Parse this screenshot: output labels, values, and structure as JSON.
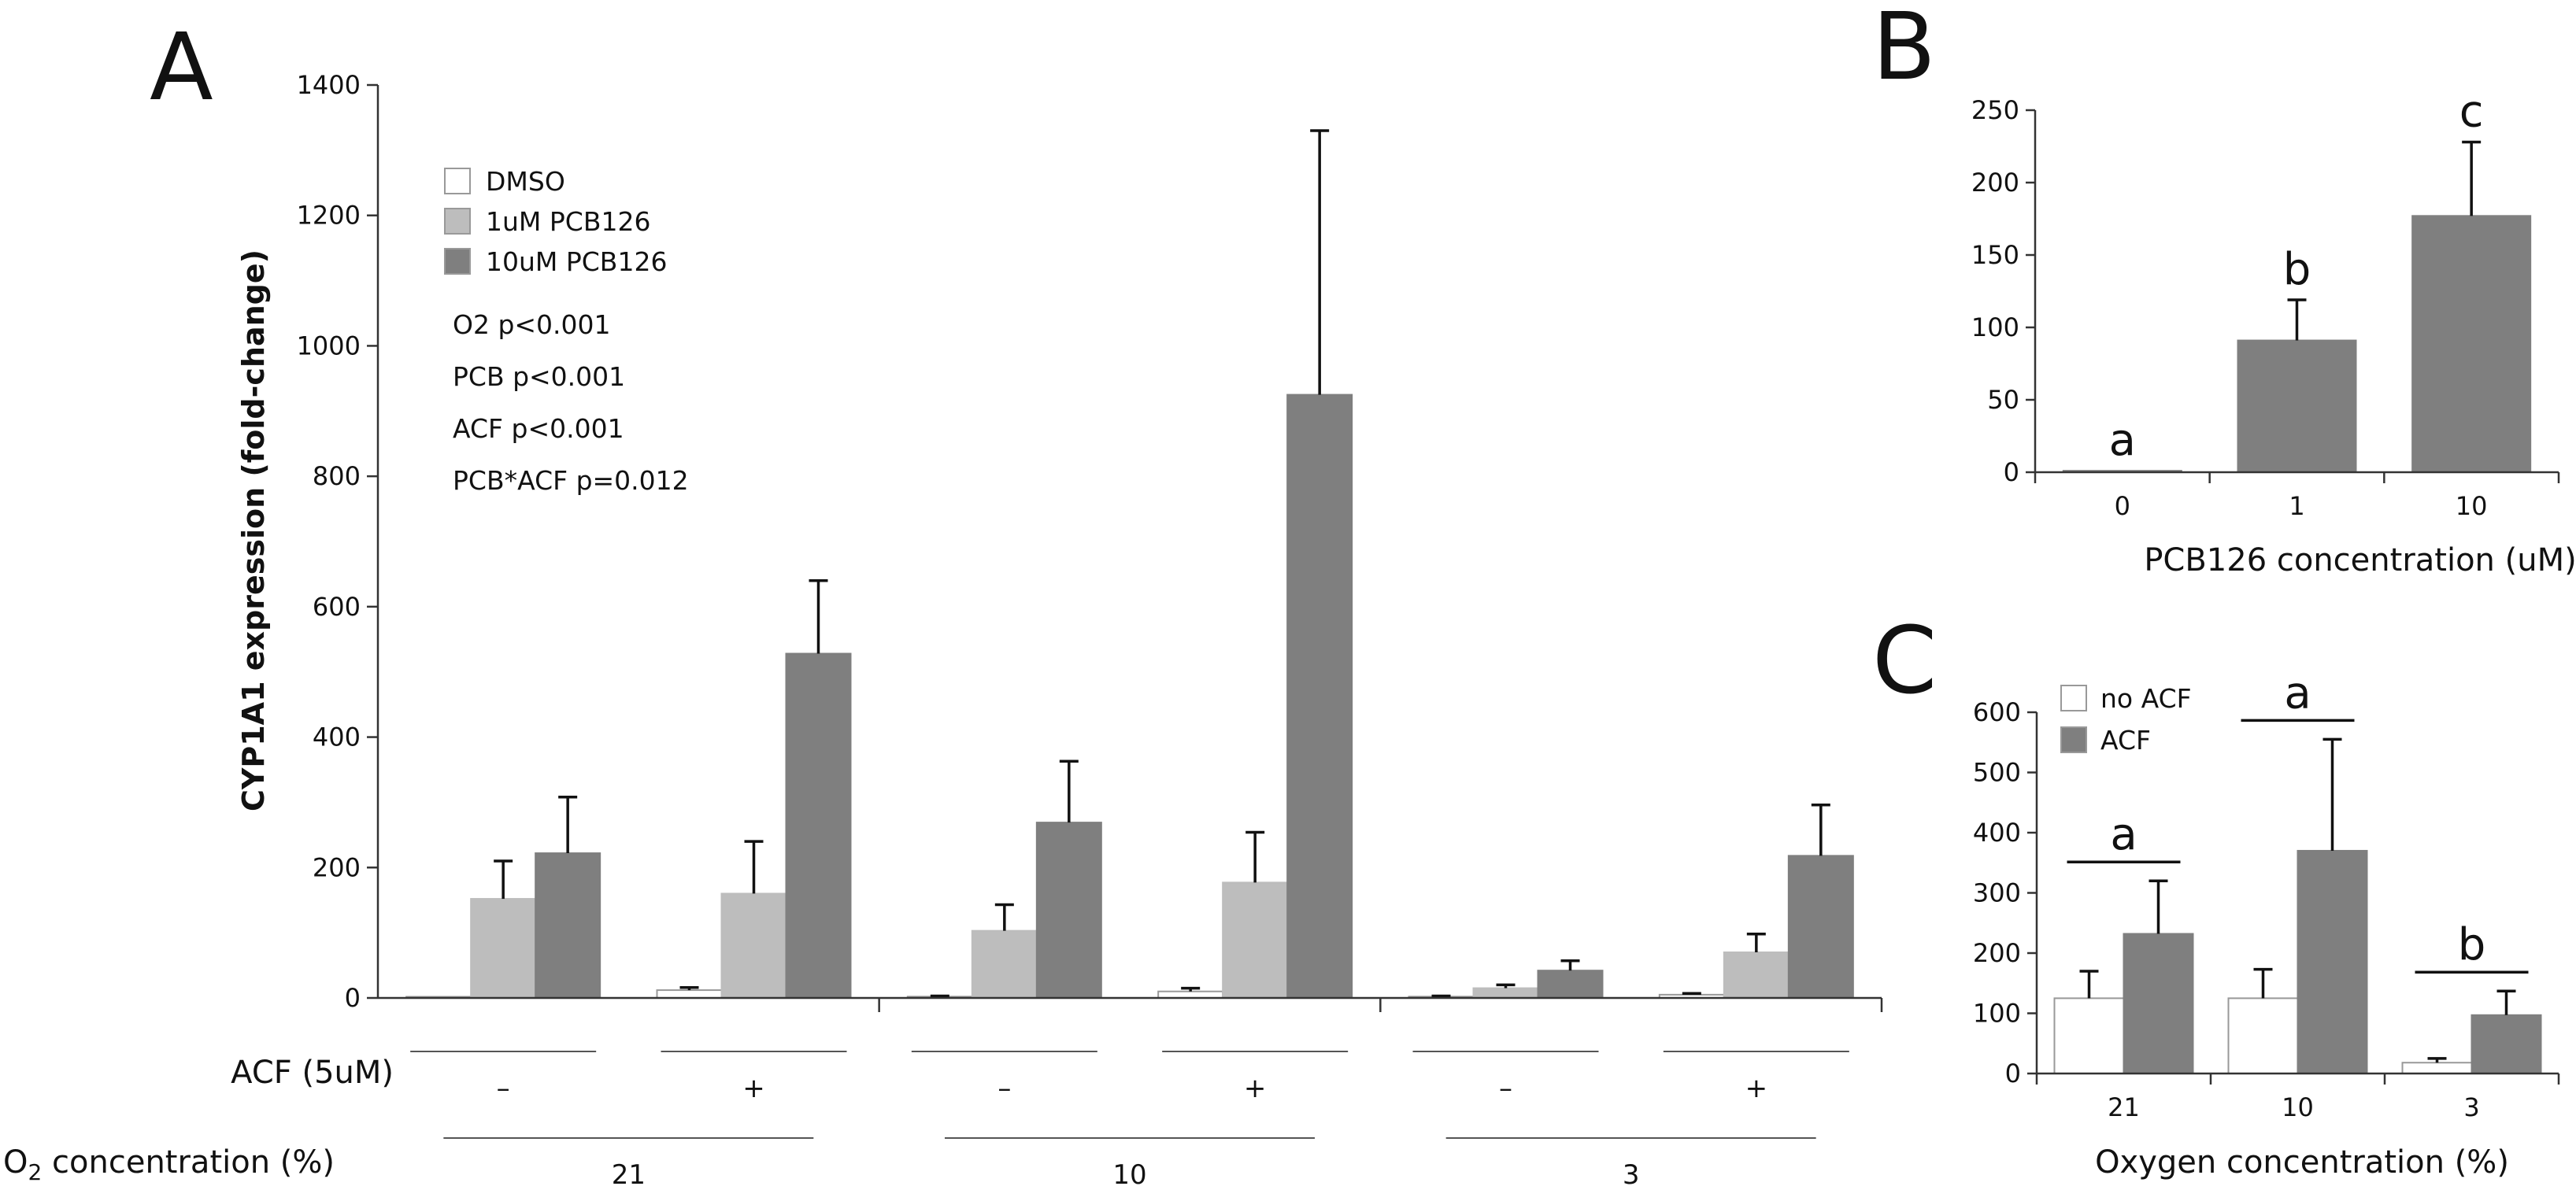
{
  "colors": {
    "dmso": "#ffffff",
    "pcb1": "#bdbdbd",
    "pcb10": "#7f7f7f",
    "no_acf": "#ffffff",
    "acf": "#7f7f7f",
    "edge": "#999999",
    "axis": "#333333"
  },
  "chart_data": [
    {
      "panel": "A",
      "type": "bar",
      "ylabel": "CYP1A1 expression (fold-change)",
      "ylim": [
        0,
        1400
      ],
      "yticks": [
        "0",
        "200",
        "400",
        "600",
        "800",
        "1000",
        "1200",
        "1400"
      ],
      "legend_placement": "top-left",
      "legend": [
        "DMSO",
        "1uM PCB126",
        "10uM PCB126"
      ],
      "annotations": [
        "O2 p<0.001",
        "PCB p<0.001",
        "ACF p<0.001",
        "PCB*ACF p=0.012"
      ],
      "acf_label": "ACF (5uM)",
      "o2_label_main": "O",
      "o2_label_sub": "2",
      "o2_label_rest": " concentration (%)",
      "groups": [
        {
          "o2": "21",
          "acf": [
            {
              "sign": "–",
              "values": [
                1,
                152,
                222
              ],
              "errors": [
                0,
                58,
                86
              ]
            },
            {
              "sign": "+",
              "values": [
                12,
                160,
                528
              ],
              "errors": [
                4,
                80,
                112
              ]
            }
          ]
        },
        {
          "o2": "10",
          "acf": [
            {
              "sign": "–",
              "values": [
                2,
                103,
                269
              ],
              "errors": [
                1,
                40,
                94
              ]
            },
            {
              "sign": "+",
              "values": [
                10,
                177,
                925
              ],
              "errors": [
                5,
                77,
                405
              ]
            }
          ]
        },
        {
          "o2": "3",
          "acf": [
            {
              "sign": "–",
              "values": [
                2,
                15,
                42
              ],
              "errors": [
                1,
                5,
                15
              ]
            },
            {
              "sign": "+",
              "values": [
                5,
                70,
                218
              ],
              "errors": [
                2,
                28,
                78
              ]
            }
          ]
        }
      ]
    },
    {
      "panel": "B",
      "type": "bar",
      "xlabel": "PCB126 concentration (uM)",
      "ylim": [
        0,
        250
      ],
      "yticks": [
        "0",
        "50",
        "100",
        "150",
        "200",
        "250"
      ],
      "categories": [
        "0",
        "1",
        "10"
      ],
      "values": [
        1,
        91,
        177
      ],
      "errors": [
        0,
        28,
        51
      ],
      "significance": [
        "a",
        "b",
        "c"
      ]
    },
    {
      "panel": "C",
      "type": "bar",
      "xlabel": "Oxygen concentration (%)",
      "ylim": [
        0,
        600
      ],
      "yticks": [
        "0",
        "100",
        "200",
        "300",
        "400",
        "500",
        "600"
      ],
      "legend_placement": "top-left",
      "legend": [
        "no ACF",
        "ACF"
      ],
      "categories": [
        "21",
        "10",
        "3"
      ],
      "series": [
        {
          "name": "no ACF",
          "values": [
            125,
            125,
            18
          ],
          "errors": [
            45,
            48,
            7
          ]
        },
        {
          "name": "ACF",
          "values": [
            232,
            370,
            97
          ],
          "errors": [
            88,
            185,
            40
          ]
        }
      ],
      "significance": [
        "a",
        "a",
        "b"
      ]
    }
  ]
}
